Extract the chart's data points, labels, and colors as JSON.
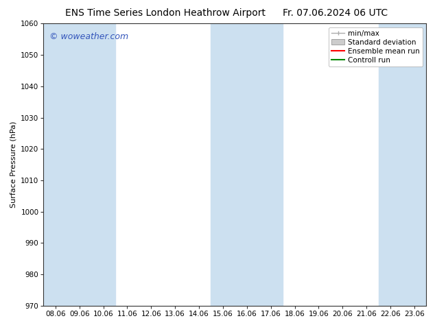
{
  "title_left": "ENS Time Series London Heathrow Airport",
  "title_right": "Fr. 07.06.2024 06 UTC",
  "ylabel": "Surface Pressure (hPa)",
  "watermark": "© woweather.com",
  "watermark_color": "#3355bb",
  "ylim": [
    970,
    1060
  ],
  "yticks": [
    970,
    980,
    990,
    1000,
    1010,
    1020,
    1030,
    1040,
    1050,
    1060
  ],
  "xtick_labels": [
    "08.06",
    "09.06",
    "10.06",
    "11.06",
    "12.06",
    "13.06",
    "14.06",
    "15.06",
    "16.06",
    "17.06",
    "18.06",
    "19.06",
    "20.06",
    "21.06",
    "22.06",
    "23.06"
  ],
  "bg_color": "#ffffff",
  "plot_bg_color": "#ffffff",
  "band_color": "#cce0f0",
  "shaded_x_indices": [
    0,
    1,
    2,
    7,
    8,
    9,
    14,
    15
  ],
  "legend_entries": [
    {
      "label": "min/max",
      "color": "#aaaaaa",
      "style": "errbar"
    },
    {
      "label": "Standard deviation",
      "color": "#cccccc",
      "style": "fill"
    },
    {
      "label": "Ensemble mean run",
      "color": "#ff0000",
      "style": "line"
    },
    {
      "label": "Controll run",
      "color": "#008800",
      "style": "line"
    }
  ],
  "title_fontsize": 10,
  "axis_fontsize": 8,
  "tick_fontsize": 7.5,
  "legend_fontsize": 7.5
}
